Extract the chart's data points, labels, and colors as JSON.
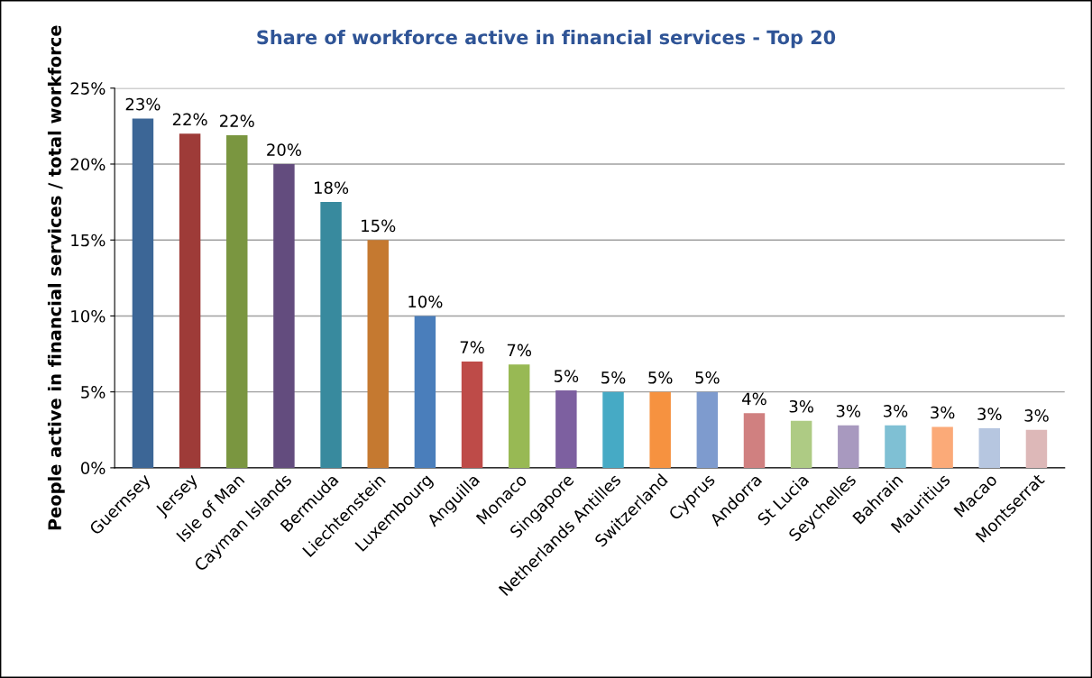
{
  "chart_data": {
    "type": "bar",
    "title": "Share of workforce active in financial services - Top 20",
    "ylabel": "People active in financial services / total workforce",
    "categories": [
      "Guernsey",
      "Jersey",
      "Isle of Man",
      "Cayman Islands",
      "Bermuda",
      "Liechtenstein",
      "Luxembourg",
      "Anguilla",
      "Monaco",
      "Singapore",
      "Netherlands Antilles",
      "Switzerland",
      "Cyprus",
      "Andorra",
      "St Lucia",
      "Seychelles",
      "Bahrain",
      "Mauritius",
      "Macao",
      "Montserrat"
    ],
    "values": [
      23.0,
      22.0,
      21.9,
      20.0,
      17.5,
      15.0,
      10.0,
      7.0,
      6.8,
      5.1,
      5.0,
      5.0,
      5.0,
      3.6,
      3.1,
      2.8,
      2.8,
      2.7,
      2.6,
      2.5
    ],
    "value_labels": [
      "23%",
      "22%",
      "22%",
      "20%",
      "18%",
      "15%",
      "10%",
      "7%",
      "7%",
      "5%",
      "5%",
      "5%",
      "5%",
      "4%",
      "3%",
      "3%",
      "3%",
      "3%",
      "3%",
      "3%"
    ],
    "colors": [
      "#3c6696",
      "#9e3b38",
      "#7a9640",
      "#634c7e",
      "#388a9e",
      "#c57930",
      "#4a7ebb",
      "#be4b48",
      "#98b954",
      "#7d60a0",
      "#46aac5",
      "#f69240",
      "#7e9bce",
      "#d08080",
      "#aecb84",
      "#a899bf",
      "#7fc0d4",
      "#fbaa78",
      "#b6c6e0",
      "#ddb8b8"
    ],
    "ylim": [
      0,
      25
    ],
    "yticks": [
      {
        "value": 0,
        "label": "0%"
      },
      {
        "value": 5,
        "label": "5%"
      },
      {
        "value": 10,
        "label": "10%"
      },
      {
        "value": 15,
        "label": "15%"
      },
      {
        "value": 20,
        "label": "20%"
      },
      {
        "value": 25,
        "label": "25%"
      }
    ],
    "grid": "y",
    "legend": false
  }
}
